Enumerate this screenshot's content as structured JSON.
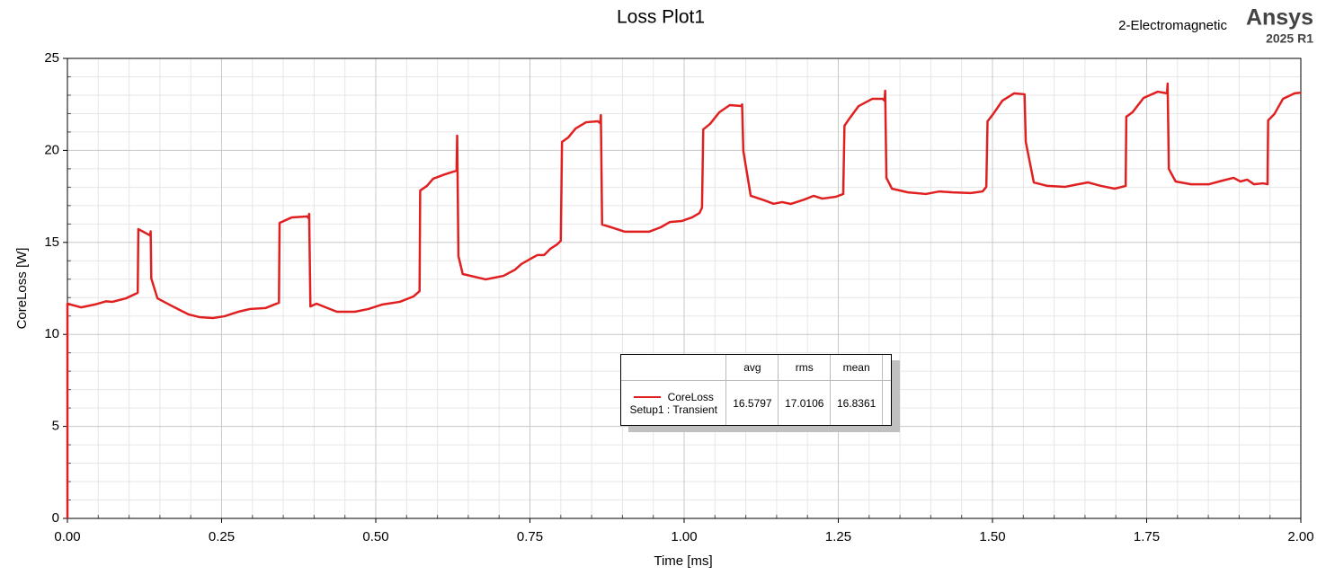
{
  "chart_data": {
    "type": "line",
    "title": "Loss Plot1",
    "subtitle": "2-Electromagnetic",
    "brand": "Ansys",
    "version": "2025 R1",
    "xlabel": "Time [ms]",
    "ylabel": "CoreLoss [W]",
    "x": [
      0,
      0,
      0.022,
      0.044,
      0.063,
      0.073,
      0.095,
      0.114,
      0.115,
      0.134,
      0.135,
      0.136,
      0.146,
      0.168,
      0.182,
      0.197,
      0.214,
      0.236,
      0.255,
      0.277,
      0.296,
      0.321,
      0.343,
      0.344,
      0.364,
      0.389,
      0.391,
      0.392,
      0.394,
      0.404,
      0.418,
      0.437,
      0.466,
      0.488,
      0.51,
      0.539,
      0.561,
      0.571,
      0.572,
      0.583,
      0.593,
      0.612,
      0.631,
      0.632,
      0.634,
      0.641,
      0.678,
      0.707,
      0.726,
      0.736,
      0.751,
      0.762,
      0.773,
      0.783,
      0.794,
      0.8,
      0.802,
      0.812,
      0.824,
      0.841,
      0.86,
      0.864,
      0.865,
      0.867,
      0.882,
      0.904,
      0.943,
      0.962,
      0.977,
      0.996,
      1.013,
      1.025,
      1.029,
      1.031,
      1.042,
      1.057,
      1.074,
      1.093,
      1.094,
      1.096,
      1.108,
      1.13,
      1.145,
      1.159,
      1.173,
      1.195,
      1.21,
      1.224,
      1.246,
      1.258,
      1.26,
      1.268,
      1.283,
      1.305,
      1.322,
      1.325,
      1.326,
      1.328,
      1.337,
      1.363,
      1.392,
      1.414,
      1.436,
      1.465,
      1.484,
      1.49,
      1.492,
      1.501,
      1.516,
      1.535,
      1.552,
      1.554,
      1.567,
      1.589,
      1.618,
      1.633,
      1.655,
      1.676,
      1.698,
      1.716,
      1.717,
      1.727,
      1.745,
      1.768,
      1.783,
      1.784,
      1.786,
      1.797,
      1.822,
      1.851,
      1.873,
      1.891,
      1.902,
      1.913,
      1.924,
      1.939,
      1.946,
      1.947,
      1.957,
      1.971,
      1.99,
      2.0
    ],
    "series": [
      {
        "name": "CoreLoss",
        "setup": "Setup1 : Transient",
        "color": "#e02020",
        "values": [
          0,
          11.67,
          11.47,
          11.62,
          11.8,
          11.77,
          11.96,
          12.26,
          15.72,
          15.38,
          15.6,
          13.04,
          11.96,
          11.57,
          11.33,
          11.08,
          10.94,
          10.89,
          10.99,
          11.23,
          11.38,
          11.43,
          11.72,
          16.06,
          16.36,
          16.41,
          16.31,
          16.55,
          11.52,
          11.67,
          11.48,
          11.23,
          11.23,
          11.38,
          11.62,
          11.77,
          12.06,
          12.35,
          17.82,
          18.07,
          18.46,
          18.7,
          18.9,
          20.8,
          14.26,
          13.28,
          12.99,
          13.18,
          13.52,
          13.82,
          14.11,
          14.31,
          14.31,
          14.65,
          14.89,
          15.09,
          20.46,
          20.7,
          21.19,
          21.53,
          21.58,
          21.48,
          21.92,
          15.97,
          15.82,
          15.58,
          15.58,
          15.82,
          16.11,
          16.16,
          16.36,
          16.6,
          16.89,
          21.14,
          21.44,
          22.07,
          22.46,
          22.41,
          22.5,
          19.97,
          17.53,
          17.29,
          17.1,
          17.19,
          17.09,
          17.33,
          17.53,
          17.38,
          17.48,
          17.63,
          21.34,
          21.73,
          22.41,
          22.8,
          22.8,
          22.7,
          23.24,
          18.51,
          17.92,
          17.72,
          17.63,
          17.77,
          17.72,
          17.68,
          17.77,
          18.02,
          21.58,
          21.97,
          22.7,
          23.1,
          23.05,
          20.46,
          18.26,
          18.07,
          18.02,
          18.12,
          18.26,
          18.07,
          17.92,
          18.07,
          21.83,
          22.07,
          22.85,
          23.19,
          23.1,
          23.63,
          18.99,
          18.31,
          18.16,
          18.16,
          18.36,
          18.51,
          18.31,
          18.41,
          18.16,
          18.21,
          18.16,
          21.63,
          21.97,
          22.8,
          23.1,
          23.14
        ]
      }
    ],
    "xlim": [
      0,
      2
    ],
    "ylim": [
      0,
      25
    ],
    "xticks": [
      {
        "value": 0,
        "label": "0.00"
      },
      0.25,
      {
        "value": 0.5,
        "label": "0.50"
      },
      0.75,
      {
        "value": 1,
        "label": "1.00"
      },
      1.25,
      {
        "value": 1.5,
        "label": "1.50"
      },
      1.75,
      {
        "value": 2,
        "label": "2.00"
      }
    ],
    "yticks": [
      0,
      5,
      10,
      15,
      20,
      25
    ],
    "grid": true,
    "minor_divisions": 5,
    "legend_table": {
      "columns": [
        "avg",
        "rms",
        "mean"
      ],
      "rows": [
        [
          16.5797,
          17.0106,
          16.8361
        ]
      ]
    }
  }
}
